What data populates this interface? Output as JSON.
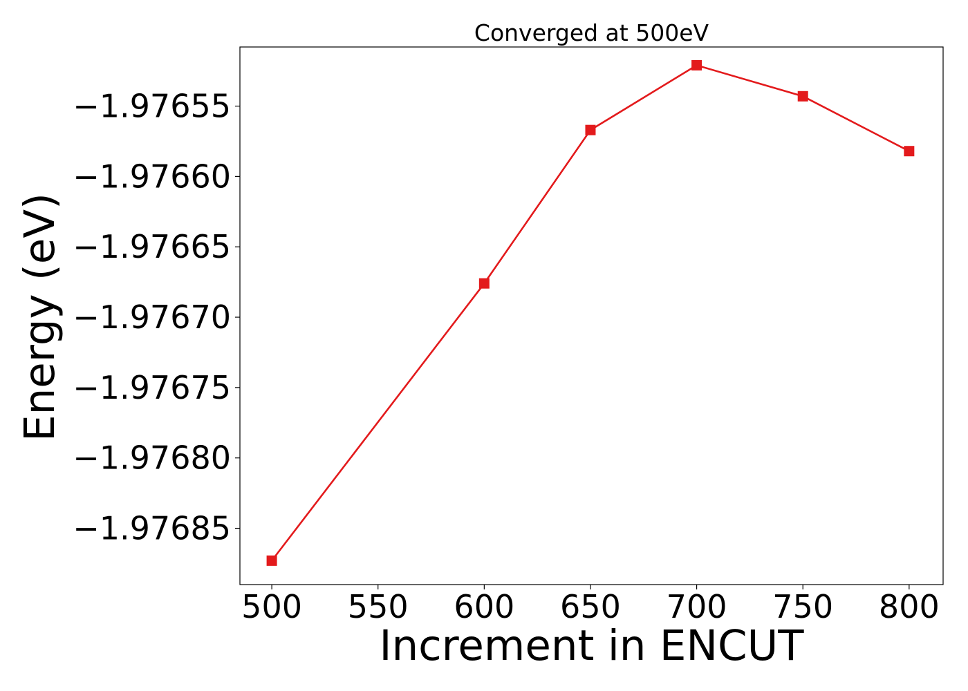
{
  "chart_data": {
    "type": "line",
    "title": "Converged at 500eV",
    "xlabel": "Increment in ENCUT",
    "ylabel": "Energy (eV)",
    "x": [
      500,
      600,
      650,
      700,
      750,
      800
    ],
    "series": [
      {
        "values": [
          -1.976873,
          -1.976676,
          -1.976567,
          -1.976521,
          -1.976543,
          -1.976582
        ],
        "color": "#e31a1c",
        "marker": "square"
      }
    ],
    "xlim": [
      485,
      816
    ],
    "ylim": [
      -1.97689,
      -1.976508
    ],
    "xticks": [
      500,
      550,
      600,
      650,
      700,
      750,
      800
    ],
    "xtick_labels": [
      "500",
      "550",
      "600",
      "650",
      "700",
      "750",
      "800"
    ],
    "yticks": [
      -1.97655,
      -1.9766,
      -1.97665,
      -1.9767,
      -1.97675,
      -1.9768,
      -1.97685
    ],
    "ytick_labels": [
      "−1.97655",
      "−1.97660",
      "−1.97665",
      "−1.97670",
      "−1.97675",
      "−1.97680",
      "−1.97685"
    ],
    "grid": false,
    "legend": false
  }
}
